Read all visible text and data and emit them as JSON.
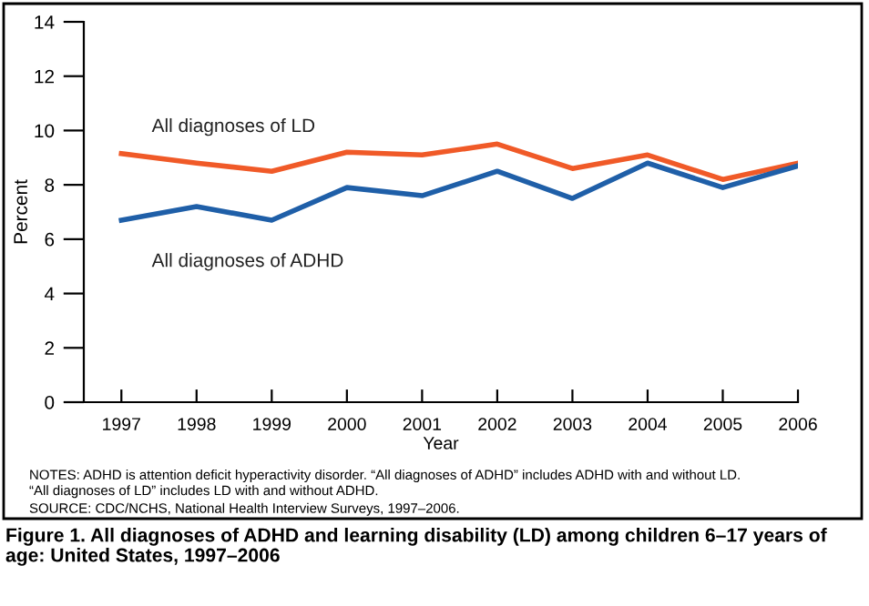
{
  "chart_data": {
    "type": "line",
    "title": "Figure 1. All diagnoses of ADHD and learning disability (LD) among children 6–17 years of age: United States, 1997–2006",
    "xlabel": "Year",
    "ylabel": "Percent",
    "x": [
      1997,
      1998,
      1999,
      2000,
      2001,
      2002,
      2003,
      2004,
      2005,
      2006
    ],
    "series": [
      {
        "name": "All diagnoses of LD",
        "color": "#f05a28",
        "values": [
          9.15,
          8.8,
          8.5,
          9.2,
          9.1,
          9.5,
          8.6,
          9.1,
          8.2,
          8.8
        ]
      },
      {
        "name": "All diagnoses of ADHD",
        "color": "#1f5fa8",
        "values": [
          6.7,
          7.2,
          6.7,
          7.9,
          7.6,
          8.5,
          7.5,
          8.8,
          7.9,
          8.7
        ]
      }
    ],
    "xlim": [
      1996.5,
      2006
    ],
    "xticks": [
      1997,
      1998,
      1999,
      2000,
      2001,
      2002,
      2003,
      2004,
      2005,
      2006
    ],
    "ylim": [
      0,
      14
    ],
    "yticks": [
      0,
      2,
      4,
      6,
      8,
      10,
      12,
      14
    ],
    "grid": false,
    "legend": false,
    "marker": "none",
    "line_style": "solid",
    "annotations": [
      "NOTES: ADHD is attention deficit hyperactivity disorder. “All diagnoses of ADHD” includes ADHD with and without LD.\n“All diagnoses of LD” includes LD with and without ADHD.",
      "SOURCE: CDC/NCHS, National Health Interview Surveys, 1997–2006."
    ]
  }
}
